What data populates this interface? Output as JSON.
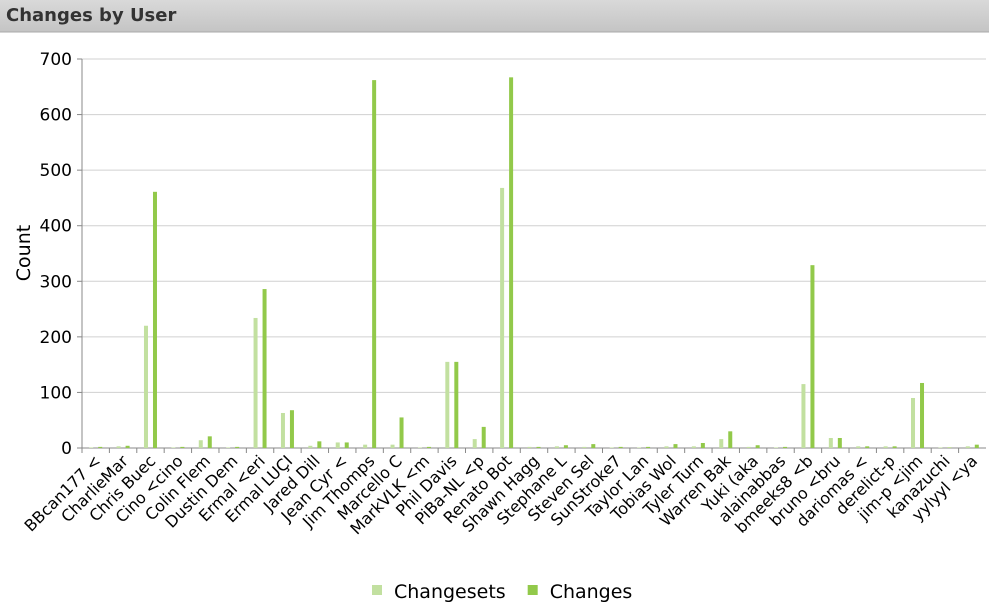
{
  "chart_data": {
    "type": "bar",
    "title": "Changes by User",
    "y_label": "Count",
    "categories": [
      "BBcan177 <",
      "CharlieMar",
      "Chris Buec",
      "Cino <cino",
      "Colin Flem",
      "Dustin Dem",
      "Ermal <eri",
      "Ermal LUÇI",
      "Jared Dill",
      "Jean Cyr <",
      "Jim Thomps",
      "Marcello C",
      "MarkVLK <m",
      "Phil Davis",
      "PiBa-NL <p",
      "Renato Bot",
      "Shawn Hagg",
      "Stephane L",
      "Steven Sel",
      "SunStroke7",
      "Taylor Lan",
      "Tobias Wol",
      "Tyler Turn",
      "Warren Bak",
      "Yuki (aka",
      "alainabbas",
      "bmeeks8 <b",
      "bruno <bru",
      "dariomas <",
      "derelict-p",
      "jim-p <jim",
      "kanazuchi",
      "yylyyl <ya"
    ],
    "series": [
      {
        "name": "Changesets",
        "color": "#c2e0a0",
        "values": [
          1,
          3,
          220,
          1,
          14,
          1,
          234,
          63,
          4,
          10,
          6,
          6,
          1,
          155,
          16,
          468,
          2,
          3,
          2,
          1,
          1,
          3,
          3,
          16,
          2,
          1,
          115,
          18,
          3,
          3,
          90,
          1,
          3
        ]
      },
      {
        "name": "Changes",
        "color": "#92c94a",
        "values": [
          2,
          4,
          461,
          2,
          21,
          2,
          286,
          68,
          12,
          10,
          662,
          55,
          2,
          155,
          38,
          667,
          2,
          5,
          7,
          2,
          2,
          7,
          9,
          30,
          5,
          2,
          329,
          18,
          3,
          3,
          117,
          1,
          6
        ]
      }
    ],
    "ylim": [
      0,
      700
    ],
    "yticks": [
      0,
      100,
      200,
      300,
      400,
      500,
      600,
      700
    ],
    "grid": true,
    "legend": "bottom"
  }
}
